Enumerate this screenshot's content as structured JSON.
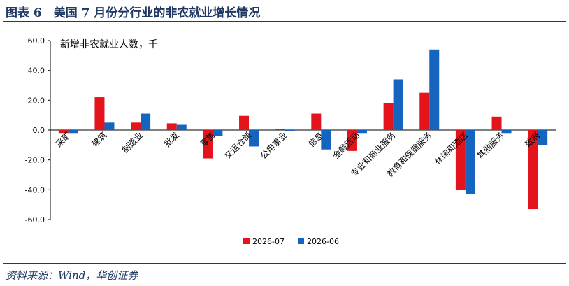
{
  "header": {
    "title": "图表 6　美国 7 月份分行业的非农就业增长情况"
  },
  "footer": {
    "source": "资料来源：Wind，华创证券"
  },
  "colors": {
    "brand": "#1f3864",
    "series_1": "#e3141b",
    "series_2": "#1565c0"
  },
  "chart_data": {
    "type": "bar",
    "unit_label": "新增非农就业人数，千",
    "categories": [
      "采矿",
      "建筑",
      "制造业",
      "批发",
      "零售",
      "交运仓储",
      "公用事业",
      "信息",
      "金融活动",
      "专业和商业服务",
      "教育和保健服务",
      "休闲和酒店",
      "其他服务",
      "政府"
    ],
    "series": [
      {
        "name": "2026-07",
        "color": "#e3141b",
        "values": [
          -2,
          22,
          5,
          4.5,
          -19,
          9.5,
          0.5,
          11,
          -14,
          18,
          25,
          -40,
          9,
          -53
        ]
      },
      {
        "name": "2026-06",
        "color": "#1565c0",
        "values": [
          -2,
          5,
          11,
          3.5,
          -4,
          -11,
          -0.5,
          -13,
          -2,
          34,
          54,
          -43,
          -2,
          -10
        ]
      }
    ],
    "ylim": [
      -60,
      60
    ],
    "yticks": [
      "60.0",
      "40.0",
      "20.0",
      "0.0",
      "-20.0",
      "-40.0",
      "-60.0"
    ],
    "ytick_values": [
      60,
      40,
      20,
      0,
      -20,
      -40,
      -60
    ],
    "legend_position": "bottom-center",
    "grid": false
  }
}
